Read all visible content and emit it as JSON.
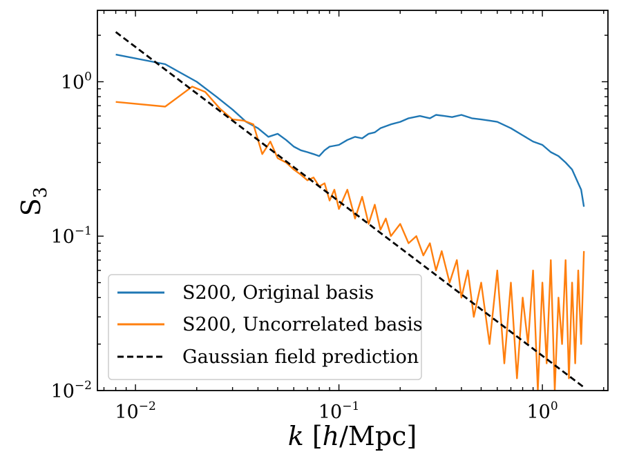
{
  "chart_data": {
    "type": "line",
    "title": "",
    "xlabel": {
      "k": "k",
      "rest": " [",
      "h": "h",
      "unit": "/Mpc]"
    },
    "ylabel": {
      "S": "S",
      "sub": "3"
    },
    "xscale": "log",
    "yscale": "log",
    "xlim": [
      0.0065,
      2.1
    ],
    "ylim": [
      0.01,
      2.9
    ],
    "x_ticks": [
      {
        "value": 0.01,
        "base": "10",
        "exp": "−2"
      },
      {
        "value": 0.1,
        "base": "10",
        "exp": "−1"
      },
      {
        "value": 1,
        "base": "10",
        "exp": "0"
      }
    ],
    "y_ticks": [
      {
        "value": 0.01,
        "base": "10",
        "exp": "−2"
      },
      {
        "value": 0.1,
        "base": "10",
        "exp": "−1"
      },
      {
        "value": 1,
        "base": "10",
        "exp": "0"
      }
    ],
    "legend_position": "lower-left",
    "series": [
      {
        "name": "S200, Original basis",
        "color": "#1f77b4",
        "style": "solid",
        "x": [
          0.008,
          0.014,
          0.02,
          0.025,
          0.03,
          0.035,
          0.04,
          0.045,
          0.05,
          0.055,
          0.06,
          0.065,
          0.07,
          0.075,
          0.08,
          0.085,
          0.09,
          0.1,
          0.11,
          0.12,
          0.13,
          0.14,
          0.15,
          0.16,
          0.18,
          0.2,
          0.22,
          0.25,
          0.28,
          0.3,
          0.33,
          0.36,
          0.4,
          0.45,
          0.5,
          0.55,
          0.6,
          0.7,
          0.8,
          0.9,
          1.0,
          1.1,
          1.2,
          1.3,
          1.4,
          1.5,
          1.55,
          1.6
        ],
        "y": [
          1.5,
          1.3,
          1.0,
          0.8,
          0.66,
          0.55,
          0.5,
          0.44,
          0.46,
          0.42,
          0.38,
          0.36,
          0.35,
          0.34,
          0.33,
          0.36,
          0.38,
          0.39,
          0.42,
          0.44,
          0.43,
          0.46,
          0.47,
          0.5,
          0.53,
          0.55,
          0.58,
          0.6,
          0.58,
          0.61,
          0.6,
          0.59,
          0.61,
          0.58,
          0.57,
          0.56,
          0.55,
          0.5,
          0.45,
          0.41,
          0.39,
          0.35,
          0.33,
          0.3,
          0.27,
          0.22,
          0.2,
          0.155
        ]
      },
      {
        "name": "S200, Uncorrelated basis",
        "color": "#ff7f0e",
        "style": "solid",
        "x": [
          0.008,
          0.014,
          0.019,
          0.022,
          0.026,
          0.03,
          0.034,
          0.038,
          0.042,
          0.046,
          0.05,
          0.055,
          0.06,
          0.065,
          0.07,
          0.075,
          0.08,
          0.085,
          0.09,
          0.095,
          0.1,
          0.11,
          0.12,
          0.13,
          0.14,
          0.15,
          0.16,
          0.17,
          0.18,
          0.2,
          0.22,
          0.24,
          0.26,
          0.28,
          0.3,
          0.32,
          0.35,
          0.38,
          0.4,
          0.43,
          0.46,
          0.5,
          0.55,
          0.6,
          0.65,
          0.7,
          0.75,
          0.8,
          0.85,
          0.9,
          0.95,
          1.0,
          1.05,
          1.1,
          1.15,
          1.2,
          1.25,
          1.3,
          1.35,
          1.4,
          1.45,
          1.5,
          1.55,
          1.6
        ],
        "y": [
          0.74,
          0.69,
          0.93,
          0.86,
          0.67,
          0.57,
          0.56,
          0.53,
          0.34,
          0.41,
          0.32,
          0.3,
          0.27,
          0.25,
          0.23,
          0.24,
          0.21,
          0.22,
          0.17,
          0.2,
          0.15,
          0.2,
          0.13,
          0.18,
          0.12,
          0.16,
          0.11,
          0.13,
          0.1,
          0.12,
          0.09,
          0.1,
          0.075,
          0.09,
          0.06,
          0.08,
          0.05,
          0.07,
          0.04,
          0.06,
          0.03,
          0.05,
          0.02,
          0.06,
          0.015,
          0.05,
          0.012,
          0.04,
          0.02,
          0.06,
          0.01,
          0.05,
          0.015,
          0.07,
          0.01,
          0.04,
          0.02,
          0.07,
          0.012,
          0.05,
          0.015,
          0.06,
          0.02,
          0.08
        ]
      },
      {
        "name": "Gaussian field prediction",
        "color": "#000000",
        "style": "dashed",
        "x": [
          0.008,
          1.6
        ],
        "y": [
          2.1,
          0.0105
        ]
      }
    ]
  }
}
